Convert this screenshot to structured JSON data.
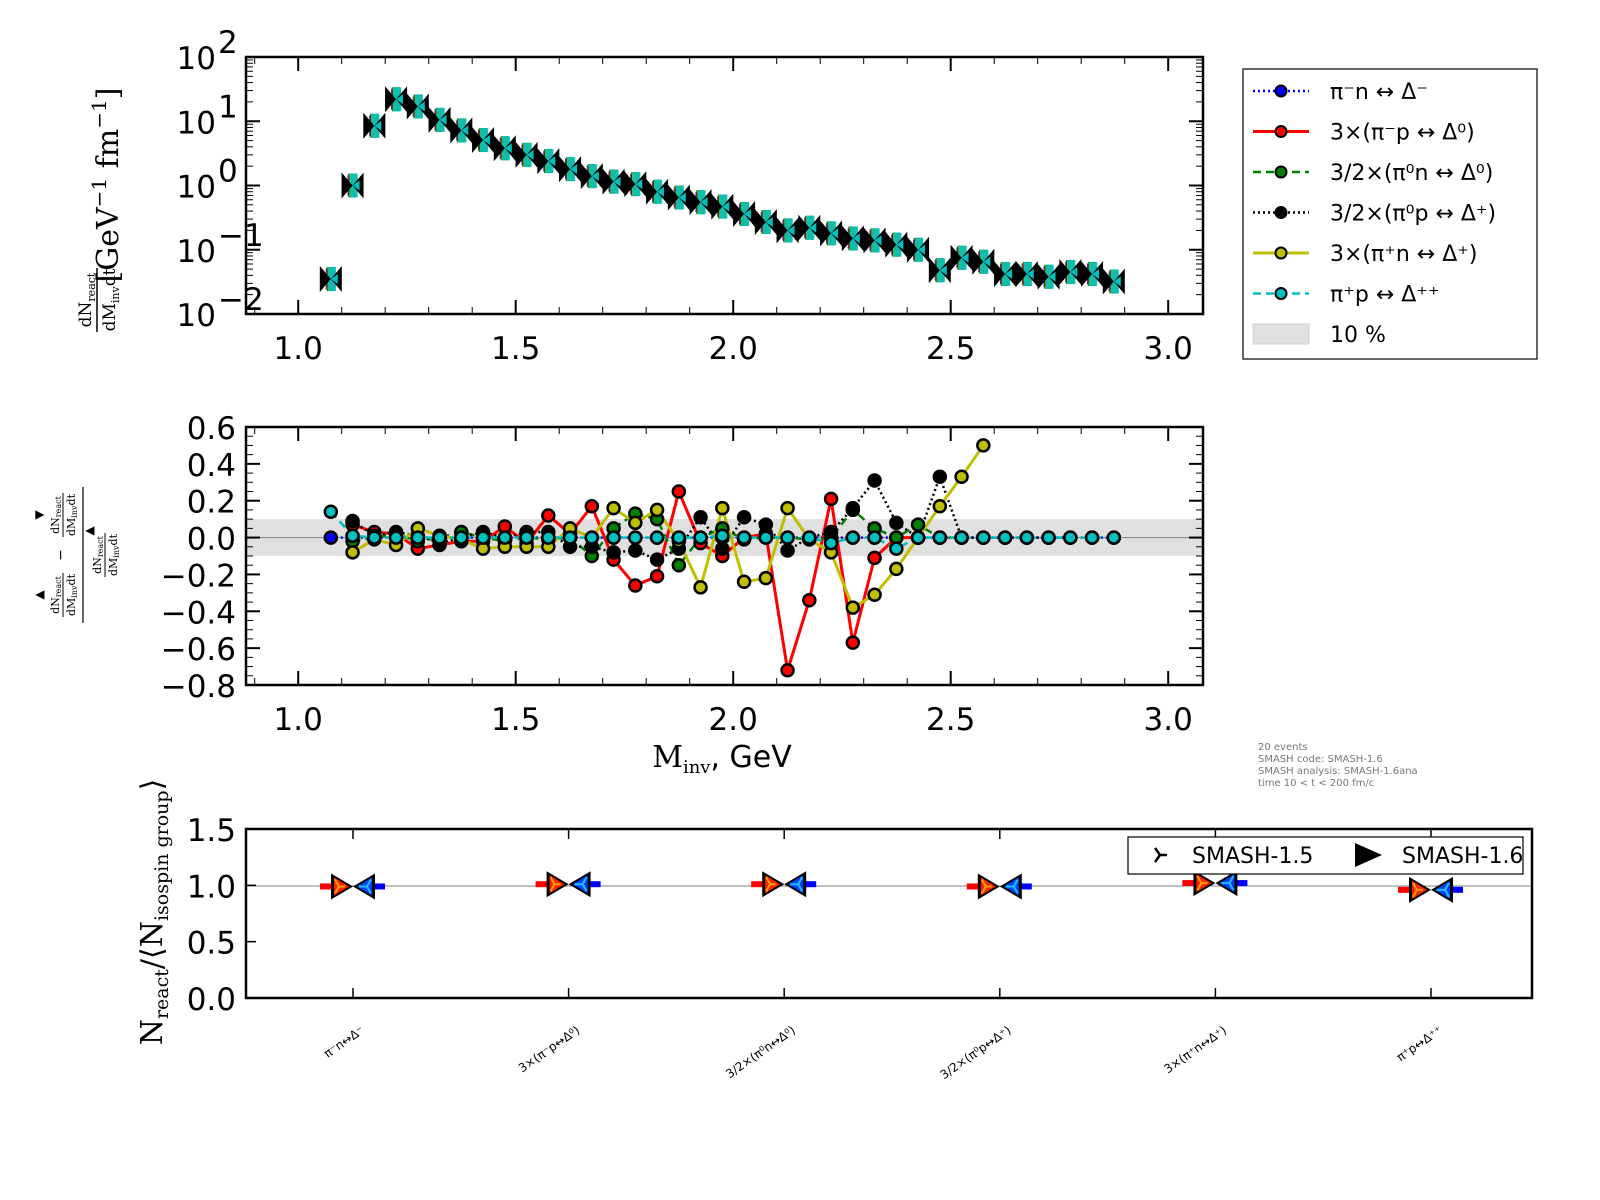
{
  "chart_data": [
    {
      "id": "spectrum",
      "type": "scatter",
      "title": "",
      "xlabel": "",
      "ylabel": "dN_react/dM_inv dt [GeV^-1 fm^-1]",
      "ylabel_parts": {
        "num": "dN",
        "num_sub": "react",
        "den": "dM",
        "den_sub": "inv",
        "den_tail": "dt",
        "units": "[GeV",
        "units_exp": "−1",
        "units_mid": " fm",
        "units_exp2": "−1",
        "units_close": "]"
      },
      "xlim": [
        0.88,
        3.08
      ],
      "ylim_log10": [
        -2,
        2
      ],
      "yscale": "log",
      "xticks": [
        1.0,
        1.5,
        2.0,
        2.5,
        3.0
      ],
      "xtick_labels": [
        "1.0",
        "1.5",
        "2.0",
        "2.5",
        "3.0"
      ],
      "yticks_log10": [
        2,
        1,
        0,
        -1,
        -2
      ],
      "ytick_labels": [
        {
          "base": "10",
          "exp": "2"
        },
        {
          "base": "10",
          "exp": "1"
        },
        {
          "base": "10",
          "exp": "0"
        },
        {
          "base": "10",
          "exp": "−1"
        },
        {
          "base": "10",
          "exp": "−2"
        }
      ],
      "marker": "bowtie",
      "x": [
        1.075,
        1.125,
        1.175,
        1.225,
        1.275,
        1.325,
        1.375,
        1.425,
        1.475,
        1.525,
        1.575,
        1.625,
        1.675,
        1.725,
        1.775,
        1.825,
        1.875,
        1.925,
        1.975,
        2.025,
        2.075,
        2.125,
        2.175,
        2.225,
        2.275,
        2.325,
        2.375,
        2.425,
        2.475,
        2.525,
        2.575,
        2.625,
        2.675,
        2.725,
        2.775,
        2.825,
        2.875
      ],
      "y": [
        0.035,
        1.0,
        8.5,
        22,
        17,
        10.5,
        7.2,
        5.1,
        3.8,
        3.0,
        2.4,
        1.8,
        1.4,
        1.15,
        1.05,
        0.8,
        0.65,
        0.55,
        0.47,
        0.36,
        0.27,
        0.2,
        0.22,
        0.18,
        0.15,
        0.14,
        0.12,
        0.1,
        0.048,
        0.075,
        0.065,
        0.042,
        0.042,
        0.038,
        0.045,
        0.042,
        0.032
      ],
      "series_colors": [
        "#0000ff",
        "#ff0000",
        "#008000",
        "#000000",
        "#bfbf00",
        "#00bfbf"
      ]
    },
    {
      "id": "relative-difference",
      "type": "line",
      "xlabel": "M_inv, GeV",
      "xlabel_parts": {
        "main": "M",
        "sub": "inv",
        "tail": ", GeV"
      },
      "ylabel": "(dN_react/dM_inv dt [SMASH-1.6] − dN_react/dM_inv dt [SMASH-1.5]) / dN_react/dM_inv dt [SMASH-1.5]",
      "xlim": [
        0.88,
        3.08
      ],
      "ylim": [
        -0.8,
        0.6
      ],
      "xticks": [
        1.0,
        1.5,
        2.0,
        2.5,
        3.0
      ],
      "xtick_labels": [
        "1.0",
        "1.5",
        "2.0",
        "2.5",
        "3.0"
      ],
      "yticks": [
        0.6,
        0.4,
        0.2,
        0.0,
        -0.2,
        -0.4,
        -0.6,
        -0.8
      ],
      "ytick_labels": [
        "0.6",
        "0.4",
        "0.2",
        "0.0",
        "−0.2",
        "−0.4",
        "−0.6",
        "−0.8"
      ],
      "band": {
        "label": "10 %",
        "range": [
          -0.1,
          0.1
        ],
        "color": "#e0e0e0"
      },
      "x": [
        1.075,
        1.125,
        1.175,
        1.225,
        1.275,
        1.325,
        1.375,
        1.425,
        1.475,
        1.525,
        1.575,
        1.625,
        1.675,
        1.725,
        1.775,
        1.825,
        1.875,
        1.925,
        1.975,
        2.025,
        2.075,
        2.125,
        2.175,
        2.225,
        2.275,
        2.325,
        2.375,
        2.425,
        2.475,
        2.525,
        2.575,
        2.625,
        2.675,
        2.725,
        2.775,
        2.825,
        2.875
      ],
      "series": [
        {
          "name": "π⁻n ↔ Δ⁻",
          "color": "#0000ff",
          "linestyle": "dotted",
          "values": [
            0.0,
            0.0,
            0.0,
            0.0,
            0.0,
            0.0,
            0.0,
            0.0,
            0.0,
            0.0,
            0.0,
            0.0,
            0.0,
            0.0,
            0.0,
            0.0,
            0.0,
            0.0,
            0.0,
            0.0,
            0.0,
            0.0,
            0.0,
            0.0,
            0.0,
            0.0,
            0.0,
            0.0,
            0.0,
            0.0,
            0.0,
            0.0,
            0.0,
            0.0,
            0.0,
            0.0,
            0.0
          ]
        },
        {
          "name": "3×(π⁻p ↔ Δ⁰)",
          "color": "#ff0000",
          "linestyle": "solid",
          "values": [
            null,
            0.07,
            0.03,
            0.02,
            -0.06,
            -0.04,
            -0.02,
            -0.02,
            0.06,
            -0.03,
            0.12,
            0.02,
            0.17,
            -0.12,
            -0.26,
            -0.21,
            0.25,
            -0.03,
            -0.1,
            0.0,
            0.02,
            -0.72,
            -0.34,
            0.21,
            -0.57,
            -0.11,
            0.0,
            0.0,
            null,
            null,
            null,
            null,
            null,
            null,
            null,
            null,
            null
          ]
        },
        {
          "name": "3/2×(π⁰n ↔ Δ⁰)",
          "color": "#008000",
          "linestyle": "dashed",
          "values": [
            null,
            -0.02,
            0.0,
            0.02,
            -0.02,
            0.0,
            0.03,
            0.0,
            -0.02,
            0.0,
            -0.01,
            0.0,
            -0.1,
            0.05,
            0.13,
            0.1,
            -0.15,
            0.0,
            0.05,
            -0.01,
            0.0,
            0.0,
            -0.01,
            0.0,
            0.15,
            0.05,
            0.0,
            0.07,
            0.0,
            0.0,
            null,
            null,
            null,
            null,
            null,
            null,
            null
          ]
        },
        {
          "name": "3/2×(π⁰p ↔ Δ⁺)",
          "color": "#000000",
          "linestyle": "dotted",
          "values": [
            null,
            0.09,
            0.01,
            0.03,
            0.01,
            -0.03,
            0.0,
            0.03,
            0.0,
            0.03,
            0.03,
            -0.05,
            -0.05,
            -0.08,
            -0.07,
            -0.12,
            -0.06,
            0.11,
            -0.06,
            0.11,
            0.07,
            -0.07,
            0.0,
            0.03,
            0.16,
            0.31,
            0.08,
            0.0,
            0.33,
            0.0,
            0.0,
            0.0,
            0.0,
            0.0,
            0.0,
            null,
            null
          ]
        },
        {
          "name": "3×(π⁺n ↔ Δ⁺)",
          "color": "#bfbf00",
          "linestyle": "solid",
          "values": [
            null,
            -0.08,
            -0.01,
            -0.04,
            0.05,
            0.01,
            -0.01,
            -0.06,
            -0.05,
            -0.05,
            -0.05,
            0.05,
            0.0,
            0.16,
            0.08,
            0.15,
            -0.02,
            -0.27,
            0.16,
            -0.24,
            -0.22,
            0.16,
            -0.01,
            -0.08,
            -0.38,
            -0.31,
            -0.17,
            0.0,
            0.17,
            0.33,
            0.5,
            null,
            null,
            null,
            null,
            null,
            null
          ]
        },
        {
          "name": "π⁺p ↔ Δ⁺⁺",
          "color": "#00bfbf",
          "linestyle": "dashed",
          "values": [
            0.14,
            0.01,
            0.0,
            0.0,
            0.0,
            0.0,
            0.0,
            0.0,
            0.0,
            0.0,
            0.0,
            0.0,
            0.0,
            0.0,
            0.0,
            0.0,
            0.0,
            0.0,
            0.01,
            0.0,
            0.0,
            0.0,
            0.0,
            -0.03,
            0.0,
            0.0,
            -0.06,
            0.0,
            0.0,
            0.0,
            0.0,
            0.0,
            0.0,
            0.0,
            0.0,
            0.0,
            0.0
          ]
        }
      ]
    },
    {
      "id": "isospin-ratio",
      "type": "scatter",
      "xlabel": "",
      "ylabel": "N_react/⟨N_isospin group⟩",
      "ylabel_parts": {
        "main": "N",
        "sub": "react",
        "mid": "/⟨N",
        "sub2": "isospin group",
        "close": "⟩"
      },
      "ylim": [
        0.0,
        1.5
      ],
      "yticks": [
        1.5,
        1.0,
        0.5,
        0.0
      ],
      "ytick_labels": [
        "1.5",
        "1.0",
        "0.5",
        "0.0"
      ],
      "categories": [
        "π⁻n↔Δ⁻",
        "3×(π⁻p↔Δ⁰)",
        "3/2×(π⁰n↔Δ⁰)",
        "3/2×(π⁰p↔Δ⁺)",
        "3×(π⁺n↔Δ⁺)",
        "π⁺p↔Δ⁺⁺"
      ],
      "series": [
        {
          "name": "SMASH-1.5",
          "marker": "tri-left",
          "values": [
            0.99,
            1.01,
            1.01,
            0.99,
            1.02,
            0.96
          ]
        },
        {
          "name": "SMASH-1.6",
          "marker": "triangle-right",
          "values": [
            0.99,
            1.01,
            1.01,
            0.99,
            1.02,
            0.96
          ]
        }
      ],
      "reference_line": 1.0,
      "legend": {
        "placement": "top-right",
        "entries": [
          "SMASH-1.5",
          "SMASH-1.6"
        ]
      }
    }
  ],
  "legend": {
    "placement": "right",
    "entries": [
      {
        "label": "π⁻n ↔ Δ⁻",
        "color": "#0000ff",
        "style": "dotted"
      },
      {
        "label": "3×(π⁻p ↔ Δ⁰)",
        "color": "#ff0000",
        "style": "solid"
      },
      {
        "label": "3/2×(π⁰n ↔ Δ⁰)",
        "color": "#008000",
        "style": "dashed"
      },
      {
        "label": "3/2×(π⁰p ↔ Δ⁺)",
        "color": "#000000",
        "style": "dotted"
      },
      {
        "label": "3×(π⁺n ↔ Δ⁺)",
        "color": "#bfbf00",
        "style": "solid"
      },
      {
        "label": "π⁺p ↔ Δ⁺⁺",
        "color": "#00bfbf",
        "style": "dashed"
      },
      {
        "label": "10 %",
        "color": "#e0e0e0",
        "style": "band"
      }
    ]
  },
  "info": {
    "lines": [
      "20 events",
      "SMASH code:      SMASH-1.6",
      "SMASH analysis:  SMASH-1.6ana",
      "time 10 < t < 200 fm/c"
    ]
  }
}
